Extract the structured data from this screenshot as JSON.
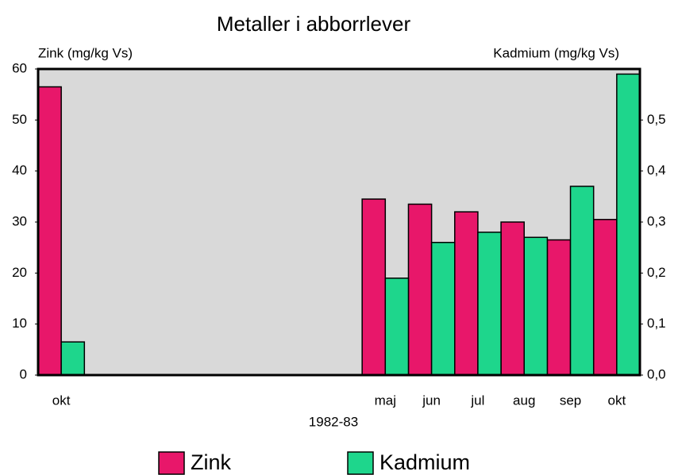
{
  "chart_data": {
    "type": "bar",
    "title": "Metaller i abborrlever",
    "xlabel": "1982-83",
    "ylabel": "Zink (mg/kg Vs)",
    "y2label": "Kadmium (mg/kg Vs)",
    "categories": [
      "okt",
      null,
      null,
      null,
      null,
      null,
      null,
      "maj",
      "jun",
      "jul",
      "aug",
      "sep",
      "okt"
    ],
    "series": [
      {
        "name": "Zink",
        "color": "#e8176a",
        "values": [
          56.5,
          null,
          null,
          null,
          null,
          null,
          null,
          34.5,
          33.5,
          32,
          30,
          26.5,
          30.5
        ]
      },
      {
        "name": "Kadmium",
        "color": "#1ed68c",
        "axis": "y2",
        "values": [
          0.065,
          null,
          null,
          null,
          null,
          null,
          null,
          0.19,
          0.26,
          0.28,
          0.27,
          0.37,
          0.59
        ]
      }
    ],
    "ylim": [
      0,
      60
    ],
    "yticks": [
      0,
      10,
      20,
      30,
      40,
      50,
      60
    ],
    "y2lim": [
      0,
      0.6
    ],
    "y2ticks": [
      {
        "value": 0,
        "label": "0,0"
      },
      {
        "value": 0.1,
        "label": "0,1"
      },
      {
        "value": 0.2,
        "label": "0,2"
      },
      {
        "value": 0.3,
        "label": "0,3"
      },
      {
        "value": 0.4,
        "label": "0,4"
      },
      {
        "value": 0.5,
        "label": "0,5"
      }
    ],
    "legend": "bottom"
  }
}
